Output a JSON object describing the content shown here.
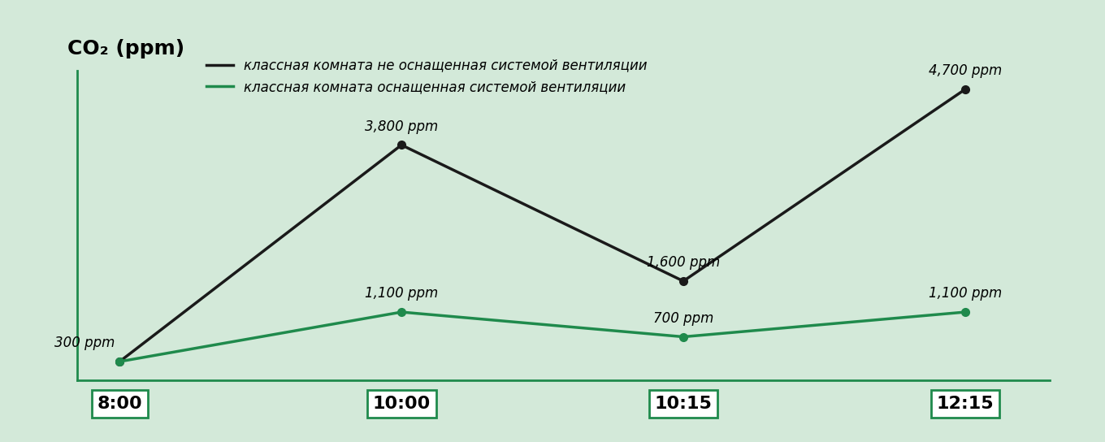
{
  "chart_data": {
    "type": "line",
    "y_label": "CO₂ (ppm)",
    "categories": [
      "8:00",
      "10:00",
      "10:15",
      "12:15"
    ],
    "series": [
      {
        "name": "классная комната не оснащенная системой вентиляции",
        "color": "#1a1a1a",
        "values": [
          300,
          3800,
          1600,
          4700
        ],
        "value_labels": [
          "300 ppm",
          "3,800 ppm",
          "1,600 ppm",
          "4,700 ppm"
        ]
      },
      {
        "name": "классная комната оснащенная системой вентиляции",
        "color": "#1f8a4c",
        "values": [
          300,
          1100,
          700,
          1100
        ],
        "value_labels": [
          null,
          "1,100 ppm",
          "700 ppm",
          "1,100 ppm"
        ]
      }
    ],
    "ylim": [
      0,
      5000
    ],
    "yticks": [],
    "tick_labels": "x",
    "marker": "o",
    "data_labels": true,
    "legend": "upper left"
  }
}
